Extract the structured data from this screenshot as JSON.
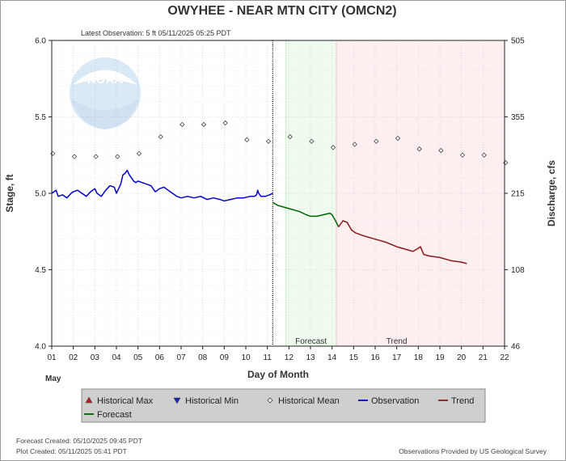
{
  "chart_data": {
    "type": "line",
    "title": "OWYHEE - NEAR MTN CITY  (OMCN2)",
    "subtitle": "Latest Observation:  5 ft 05/11/2025 05:25 PDT",
    "xlabel": "Day of Month",
    "month_label": "May",
    "ylabel_left": "Stage, ft",
    "ylabel_right": "Discharge, cfs",
    "xlim": [
      1,
      22
    ],
    "ylim": [
      4.0,
      6.0
    ],
    "x_ticks": [
      "01",
      "02",
      "03",
      "04",
      "05",
      "06",
      "07",
      "08",
      "09",
      "10",
      "11",
      "12",
      "13",
      "14",
      "15",
      "16",
      "17",
      "18",
      "19",
      "20",
      "21",
      "22"
    ],
    "y_ticks_left": [
      "4.0",
      "4.5",
      "5.0",
      "5.5",
      "6.0"
    ],
    "y_ticks_right": [
      {
        "stage": 4.0,
        "label": "46"
      },
      {
        "stage": 4.5,
        "label": "108"
      },
      {
        "stage": 5.0,
        "label": "215"
      },
      {
        "stage": 5.5,
        "label": "355"
      },
      {
        "stage": 6.0,
        "label": "505"
      }
    ],
    "regions": [
      {
        "name": "Forecast",
        "from": 11.85,
        "to": 14.2,
        "color": "#eefbee",
        "edge": "#c8eac8"
      },
      {
        "name": "Trend",
        "from": 14.2,
        "to": 22,
        "color": "#fdeef0",
        "edge": "#f1c6cc"
      }
    ],
    "now_x": 11.25,
    "historical_mean": [
      [
        1.05,
        5.26
      ],
      [
        2.05,
        5.24
      ],
      [
        3.05,
        5.24
      ],
      [
        4.05,
        5.24
      ],
      [
        5.05,
        5.26
      ],
      [
        6.05,
        5.37
      ],
      [
        7.05,
        5.45
      ],
      [
        8.05,
        5.45
      ],
      [
        9.05,
        5.46
      ],
      [
        10.05,
        5.35
      ],
      [
        11.05,
        5.34
      ],
      [
        12.05,
        5.37
      ],
      [
        13.05,
        5.34
      ],
      [
        14.05,
        5.3
      ],
      [
        15.05,
        5.32
      ],
      [
        16.05,
        5.34
      ],
      [
        17.05,
        5.36
      ],
      [
        18.05,
        5.29
      ],
      [
        19.05,
        5.28
      ],
      [
        20.05,
        5.25
      ],
      [
        21.05,
        5.25
      ],
      [
        22.05,
        5.2
      ]
    ],
    "observation": [
      [
        1.0,
        5.0
      ],
      [
        1.1,
        5.01
      ],
      [
        1.2,
        5.02
      ],
      [
        1.3,
        4.98
      ],
      [
        1.5,
        4.99
      ],
      [
        1.7,
        4.97
      ],
      [
        1.9,
        5.0
      ],
      [
        2.0,
        5.01
      ],
      [
        2.2,
        5.02
      ],
      [
        2.4,
        5.0
      ],
      [
        2.6,
        4.98
      ],
      [
        2.8,
        5.01
      ],
      [
        3.0,
        5.03
      ],
      [
        3.1,
        5.0
      ],
      [
        3.3,
        4.98
      ],
      [
        3.5,
        5.02
      ],
      [
        3.7,
        5.05
      ],
      [
        3.9,
        5.04
      ],
      [
        4.0,
        5.0
      ],
      [
        4.1,
        5.03
      ],
      [
        4.2,
        5.06
      ],
      [
        4.3,
        5.12
      ],
      [
        4.4,
        5.13
      ],
      [
        4.5,
        5.15
      ],
      [
        4.6,
        5.12
      ],
      [
        4.7,
        5.1
      ],
      [
        4.8,
        5.08
      ],
      [
        4.9,
        5.07
      ],
      [
        5.0,
        5.08
      ],
      [
        5.2,
        5.07
      ],
      [
        5.4,
        5.06
      ],
      [
        5.6,
        5.05
      ],
      [
        5.8,
        5.01
      ],
      [
        6.0,
        5.03
      ],
      [
        6.2,
        5.04
      ],
      [
        6.4,
        5.02
      ],
      [
        6.6,
        5.0
      ],
      [
        6.8,
        4.98
      ],
      [
        7.0,
        4.97
      ],
      [
        7.3,
        4.98
      ],
      [
        7.6,
        4.97
      ],
      [
        7.9,
        4.98
      ],
      [
        8.2,
        4.96
      ],
      [
        8.5,
        4.97
      ],
      [
        8.8,
        4.96
      ],
      [
        9.0,
        4.95
      ],
      [
        9.3,
        4.96
      ],
      [
        9.6,
        4.97
      ],
      [
        9.9,
        4.97
      ],
      [
        10.2,
        4.98
      ],
      [
        10.4,
        4.98
      ],
      [
        10.5,
        4.99
      ],
      [
        10.55,
        5.02
      ],
      [
        10.6,
        5.0
      ],
      [
        10.7,
        4.98
      ],
      [
        10.9,
        4.98
      ],
      [
        11.1,
        4.99
      ],
      [
        11.25,
        5.0
      ]
    ],
    "forecast": [
      [
        11.25,
        4.94
      ],
      [
        11.5,
        4.92
      ],
      [
        12.0,
        4.9
      ],
      [
        12.5,
        4.88
      ],
      [
        12.8,
        4.86
      ],
      [
        13.0,
        4.85
      ],
      [
        13.3,
        4.85
      ],
      [
        13.6,
        4.86
      ],
      [
        13.9,
        4.87
      ],
      [
        14.0,
        4.86
      ],
      [
        14.2,
        4.81
      ],
      [
        14.3,
        4.78
      ]
    ],
    "trend": [
      [
        14.3,
        4.78
      ],
      [
        14.5,
        4.82
      ],
      [
        14.7,
        4.81
      ],
      [
        14.9,
        4.76
      ],
      [
        15.1,
        4.74
      ],
      [
        15.5,
        4.72
      ],
      [
        16.0,
        4.7
      ],
      [
        16.5,
        4.68
      ],
      [
        17.0,
        4.65
      ],
      [
        17.5,
        4.63
      ],
      [
        17.75,
        4.62
      ],
      [
        18.0,
        4.64
      ],
      [
        18.1,
        4.65
      ],
      [
        18.25,
        4.6
      ],
      [
        18.5,
        4.59
      ],
      [
        19.0,
        4.58
      ],
      [
        19.5,
        4.56
      ],
      [
        20.0,
        4.55
      ],
      [
        20.25,
        4.54
      ]
    ],
    "colors": {
      "observation": "#0000cc",
      "forecast": "#006400",
      "trend": "#8b1a1a",
      "mean": "#444444",
      "max": "#b22222",
      "min": "#1c2ab4"
    },
    "legend": [
      {
        "label": "Historical Max",
        "marker": "triangle-up",
        "color": "#b22222"
      },
      {
        "label": "Historical Min",
        "marker": "triangle-down",
        "color": "#1c2ab4"
      },
      {
        "label": "Historical Mean",
        "marker": "diamond",
        "color": "#444444"
      },
      {
        "label": "Observation",
        "marker": "line",
        "color": "#0000cc"
      },
      {
        "label": "Trend",
        "marker": "line",
        "color": "#8b1a1a"
      },
      {
        "label": "Forecast",
        "marker": "line",
        "color": "#006400"
      }
    ],
    "grid": true,
    "legend_placement": "bottom"
  },
  "footer": {
    "forecast_created": "Forecast Created: 05/10/2025 09:45 PDT",
    "plot_created": "Plot Created: 05/11/2025 05:41 PDT",
    "credit": "Observations Provided by US Geological Survey"
  },
  "logo": {
    "text": "NOAA"
  }
}
